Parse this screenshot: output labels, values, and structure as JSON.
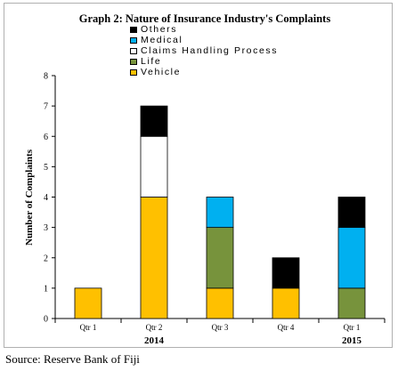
{
  "chart_data": {
    "type": "stacked-bar",
    "title": "Graph 2: Nature of Insurance Industry's Complaints",
    "ylabel": "Number of Complaints",
    "xlabel": "",
    "ylim": [
      0,
      8
    ],
    "yticks": [
      0,
      1,
      2,
      3,
      4,
      5,
      6,
      7,
      8
    ],
    "grid": false,
    "legend_position": "top",
    "categories": [
      "Qtr 1",
      "Qtr 2",
      "Qtr 3",
      "Qtr 4",
      "Qtr 1"
    ],
    "year_labels": [
      {
        "label": "2014",
        "category_index": 1
      },
      {
        "label": "2015",
        "category_index": 4
      }
    ],
    "series": [
      {
        "name": "Vehicle",
        "color": "#FFC000",
        "values": [
          1,
          4,
          1,
          1,
          0
        ]
      },
      {
        "name": "Life",
        "color": "#77933C",
        "values": [
          0,
          0,
          2,
          0,
          1
        ]
      },
      {
        "name": "Claims Handling Process",
        "color": "#FFFFFF",
        "values": [
          0,
          2,
          0,
          0,
          0
        ]
      },
      {
        "name": "Medical",
        "color": "#00B0F0",
        "values": [
          0,
          0,
          1,
          0,
          2
        ]
      },
      {
        "name": "Others",
        "color": "#000000",
        "values": [
          0,
          1,
          0,
          1,
          1
        ]
      }
    ],
    "legend_order": [
      "Others",
      "Medical",
      "Claims Handling Process",
      "Life",
      "Vehicle"
    ]
  },
  "source": "Source: Reserve Bank of Fiji"
}
